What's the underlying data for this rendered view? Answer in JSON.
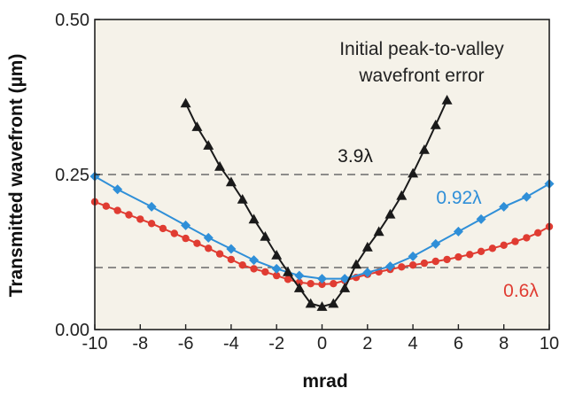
{
  "chart_data": {
    "type": "line",
    "title": "",
    "xlabel": "mrad",
    "ylabel": "Transmitted wavefront (µm)",
    "xlim": [
      -10,
      10
    ],
    "ylim": [
      0,
      0.5
    ],
    "xticks": [
      -10,
      -8,
      -6,
      -4,
      -2,
      0,
      2,
      4,
      6,
      8,
      10
    ],
    "xtick_labels": [
      "-10",
      "-8",
      "-6",
      "-4",
      "-2",
      "0",
      "2",
      "4",
      "6",
      "8",
      "10"
    ],
    "yticks": [
      0,
      0.25,
      0.5
    ],
    "ytick_labels": [
      "0.00",
      "0.25",
      "0.50"
    ],
    "reference_lines": [
      0.25,
      0.1
    ],
    "annotation": [
      "Initial peak-to-valley",
      "wavefront error"
    ],
    "background": "#f5f2e9",
    "grid": false,
    "series": [
      {
        "name": "3.9λ",
        "color": "#1a1a1a",
        "marker": "triangle",
        "x": [
          -6,
          -5.5,
          -5,
          -4.5,
          -4,
          -3.5,
          -3,
          -2.5,
          -2,
          -1.5,
          -1,
          -0.5,
          0,
          0.5,
          1,
          1.5,
          2,
          2.5,
          3,
          3.5,
          4,
          4.5,
          5,
          5.5
        ],
        "values": [
          0.365,
          0.327,
          0.297,
          0.263,
          0.238,
          0.21,
          0.178,
          0.15,
          0.12,
          0.093,
          0.067,
          0.042,
          0.037,
          0.042,
          0.067,
          0.105,
          0.133,
          0.158,
          0.186,
          0.216,
          0.252,
          0.29,
          0.33,
          0.37
        ]
      },
      {
        "name": "0.92λ",
        "color": "#2f8fd8",
        "marker": "diamond",
        "x": [
          -10,
          -9,
          -7.5,
          -6,
          -5,
          -4,
          -3,
          -2,
          -1,
          0,
          1,
          2,
          3,
          4,
          5,
          6,
          7,
          8,
          9,
          10
        ],
        "values": [
          0.247,
          0.226,
          0.198,
          0.168,
          0.148,
          0.13,
          0.112,
          0.098,
          0.087,
          0.082,
          0.082,
          0.092,
          0.102,
          0.118,
          0.138,
          0.158,
          0.178,
          0.198,
          0.214,
          0.235
        ]
      },
      {
        "name": "0.6λ",
        "color": "#e03c32",
        "marker": "circle",
        "x": [
          -10,
          -9.5,
          -9,
          -8.5,
          -8,
          -7.5,
          -7,
          -6.5,
          -6,
          -5.5,
          -5,
          -4.5,
          -4,
          -3.5,
          -3,
          -2.5,
          -2,
          -1.5,
          -1,
          -0.5,
          0,
          0.5,
          1,
          1.5,
          2,
          2.5,
          3,
          3.5,
          4,
          4.5,
          5,
          5.5,
          6,
          6.5,
          7,
          7.5,
          8,
          8.5,
          9,
          9.5,
          10
        ],
        "values": [
          0.206,
          0.199,
          0.192,
          0.185,
          0.178,
          0.171,
          0.163,
          0.155,
          0.147,
          0.139,
          0.131,
          0.122,
          0.113,
          0.104,
          0.098,
          0.093,
          0.087,
          0.081,
          0.076,
          0.074,
          0.073,
          0.074,
          0.079,
          0.084,
          0.089,
          0.093,
          0.097,
          0.101,
          0.104,
          0.107,
          0.11,
          0.113,
          0.117,
          0.121,
          0.126,
          0.131,
          0.136,
          0.142,
          0.148,
          0.156,
          0.166
        ]
      }
    ]
  }
}
